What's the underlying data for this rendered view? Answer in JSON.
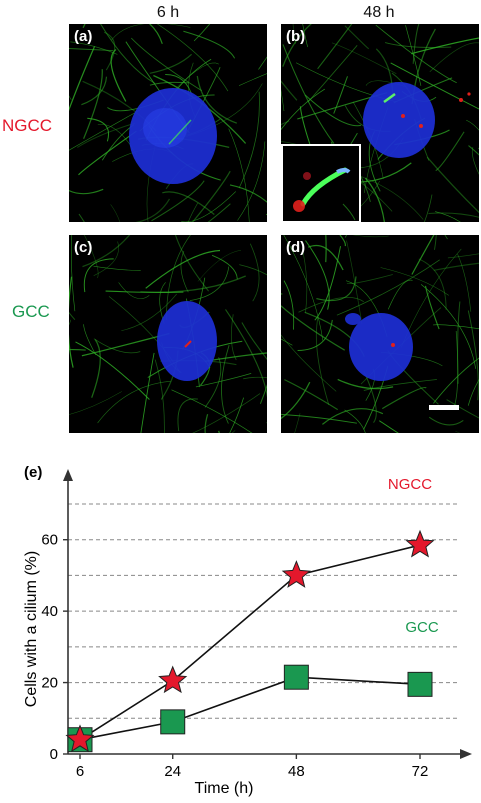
{
  "figure": {
    "columns": [
      "6 h",
      "48 h"
    ],
    "rows": [
      {
        "label": "NGCC",
        "color": "#e4182c"
      },
      {
        "label": "GCC",
        "color": "#1a9850"
      }
    ],
    "panels": [
      {
        "letter": "(a)"
      },
      {
        "letter": "(b)"
      },
      {
        "letter": "(c)"
      },
      {
        "letter": "(d)"
      }
    ],
    "stain_colors": {
      "microtubules": "#2fae25",
      "nucleus": "#1d2fd6",
      "cilium_marker": "#e0201c"
    }
  },
  "chart_data": {
    "type": "line",
    "panel_letter": "(e)",
    "x": [
      6,
      24,
      48,
      72
    ],
    "xlabel": "Time (h)",
    "ylabel": "Cells with a cilium (%)",
    "xticks": [
      "6",
      "24",
      "48",
      "72"
    ],
    "yticks": [
      "0",
      "20",
      "40",
      "60"
    ],
    "ylim": [
      0,
      70
    ],
    "grid": "horizontal dashed lines every 10",
    "series": [
      {
        "name": "NGCC",
        "values": [
          4,
          20.5,
          50,
          58.5
        ],
        "marker": "star",
        "color": "#e4182c"
      },
      {
        "name": "GCC",
        "values": [
          4,
          9,
          21.5,
          19.5
        ],
        "marker": "square",
        "color": "#1a9850"
      }
    ]
  }
}
